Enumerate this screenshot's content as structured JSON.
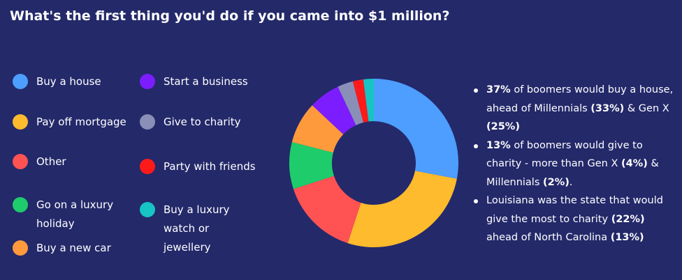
{
  "chart_data": {
    "type": "donut",
    "title": "What's the first thing you'd do if you came into $1 million?",
    "series": [
      {
        "name": "Buy a house",
        "color": "#4d9eff",
        "values": [
          28
        ]
      },
      {
        "name": "Pay off mortgage",
        "color": "#fdbb2d",
        "values": [
          27
        ]
      },
      {
        "name": "Other",
        "color": "#ff5252",
        "values": [
          15
        ]
      },
      {
        "name": "Go on a luxury holiday",
        "color": "#1fcc6b",
        "values": [
          9
        ]
      },
      {
        "name": "Buy a new car",
        "color": "#ff9a3c",
        "values": [
          8
        ]
      },
      {
        "name": "Start a business",
        "color": "#7c1dff",
        "values": [
          6
        ]
      },
      {
        "name": "Give to charity",
        "color": "#8a8fb8",
        "values": [
          3
        ]
      },
      {
        "name": "Party with friends",
        "color": "#ff1a1a",
        "values": [
          2
        ]
      },
      {
        "name": "Buy a luxury watch or jewellery",
        "color": "#16c4c4",
        "values": [
          2
        ]
      }
    ],
    "notes": [
      [
        {
          "text": "37%",
          "bold": true
        },
        {
          "text": " of boomers would buy a house, ahead of Millennials ",
          "bold": false
        },
        {
          "text": "(33%)",
          "bold": true
        },
        {
          "text": " & Gen X ",
          "bold": false
        },
        {
          "text": "(25%)",
          "bold": true
        }
      ],
      [
        {
          "text": "13%",
          "bold": true
        },
        {
          "text": " of boomers would give to charity - more than Gen X ",
          "bold": false
        },
        {
          "text": "(4%)",
          "bold": true
        },
        {
          "text": " & Millennials ",
          "bold": false
        },
        {
          "text": "(2%)",
          "bold": true
        },
        {
          "text": ".",
          "bold": false
        }
      ],
      [
        {
          "text": "Louisiana was the state that would give the most to charity ",
          "bold": false
        },
        {
          "text": "(22%)",
          "bold": true
        },
        {
          "text": " ahead of North Carolina ",
          "bold": false
        },
        {
          "text": "(13%)",
          "bold": true
        }
      ]
    ]
  }
}
